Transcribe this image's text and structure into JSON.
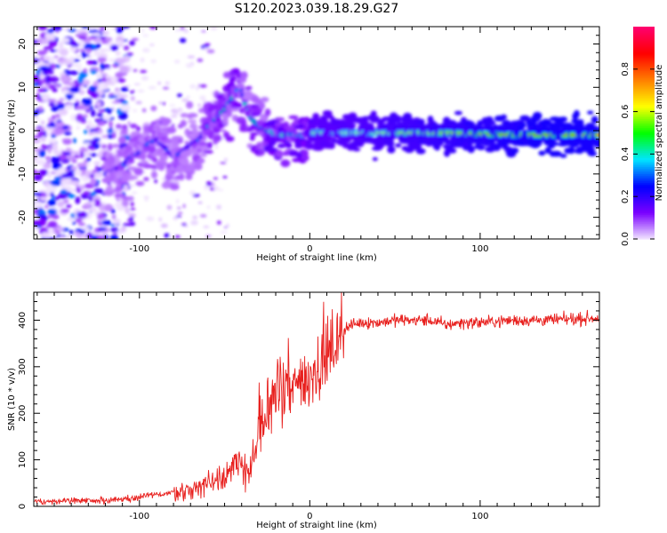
{
  "title": "S120.2023.039.18.29.G27",
  "chart_data": [
    {
      "type": "heatmap",
      "xlabel": "Height of straight line (km)",
      "ylabel": "Frequency (Hz)",
      "xlim": [
        -162,
        170
      ],
      "ylim": [
        -25,
        24
      ],
      "x_ticks": [
        -100,
        0,
        100
      ],
      "y_ticks": [
        -20,
        -10,
        0,
        10,
        20
      ],
      "colorbar": {
        "label": "Normalized spectral amplitude",
        "range": [
          0,
          1
        ],
        "ticks": [
          0.0,
          0.2,
          0.4,
          0.6,
          0.8
        ],
        "tick_labels": [
          "0.0",
          "0.2",
          "0.4",
          "0.6",
          "0.8"
        ],
        "colormap": [
          "#f2e6ff",
          "#7a00ff",
          "#0000ff",
          "#00e5ff",
          "#00ff00",
          "#ffff00",
          "#ff7f00",
          "#ff0000",
          "#ff0070"
        ]
      },
      "ridge": {
        "x": [
          -120,
          -110,
          -105,
          -100,
          -95,
          -90,
          -85,
          -80,
          -75,
          -70,
          -65,
          -60,
          -55,
          -50,
          -45,
          -42,
          -40,
          -38,
          -35,
          -30,
          -25,
          -20,
          -15,
          -10,
          -5,
          0,
          10,
          20,
          40,
          60,
          80,
          100,
          120,
          140,
          170
        ],
        "y": [
          -10,
          -8,
          -6,
          -5,
          -3,
          -2,
          -4,
          -6,
          -5,
          -3,
          -2,
          1,
          3,
          5,
          8,
          10,
          9,
          6,
          3,
          1,
          0,
          -1,
          -1,
          -1,
          -1,
          -0.5,
          -0.5,
          -0.5,
          -0.5,
          -0.5,
          -0.5,
          -0.8,
          -1,
          -1,
          -1
        ]
      }
    },
    {
      "type": "line",
      "xlabel": "Height of straight line (km)",
      "ylabel": "SNR (10 * v/v)",
      "xlim": [
        -162,
        170
      ],
      "ylim": [
        0,
        460
      ],
      "x_ticks": [
        -100,
        0,
        100
      ],
      "y_ticks": [
        0,
        100,
        200,
        300,
        400
      ],
      "line_color": "#e8201e",
      "series": [
        {
          "x": [
            -162,
            -140,
            -120,
            -110,
            -100,
            -90,
            -80,
            -70,
            -60,
            -50,
            -45,
            -40,
            -35,
            -30,
            -25,
            -20,
            -15,
            -10,
            -5,
            0,
            5,
            10,
            15,
            20,
            25,
            30,
            40,
            50,
            60,
            70,
            75,
            80,
            90,
            100,
            120,
            140,
            170
          ],
          "values": [
            10,
            12,
            12,
            15,
            20,
            25,
            30,
            35,
            50,
            70,
            80,
            90,
            80,
            150,
            200,
            260,
            230,
            250,
            270,
            280,
            300,
            320,
            350,
            380,
            390,
            395,
            395,
            400,
            400,
            400,
            395,
            390,
            395,
            395,
            400,
            400,
            405
          ]
        }
      ]
    }
  ]
}
